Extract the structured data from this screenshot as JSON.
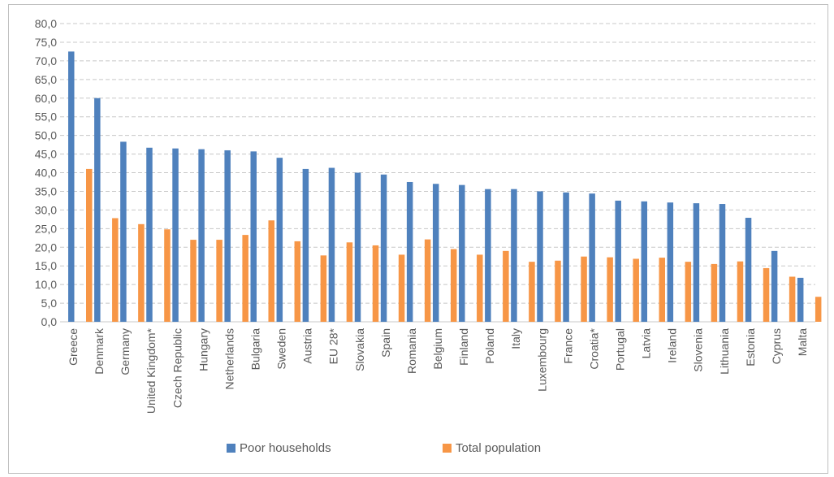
{
  "chart_data": {
    "type": "bar",
    "categories": [
      "Greece",
      "Denmark",
      "Germany",
      "United Kingdom*",
      "Czech Republic",
      "Hungary",
      "Netherlands",
      "Bulgaria",
      "Sweden",
      "Austria",
      "EU 28*",
      "Slovakia",
      "Spain",
      "Romania",
      "Belgium",
      "Finland",
      "Poland",
      "Italy",
      "Luxembourg",
      "France",
      "Croatia*",
      "Portugal",
      "Latvia",
      "Ireland",
      "Slovenia",
      "Lithuania",
      "Estonia",
      "Cyprus",
      "Malta"
    ],
    "series": [
      {
        "name": "Poor households",
        "color": "#4f81bd",
        "values": [
          72.5,
          60.0,
          48.3,
          46.7,
          46.5,
          46.3,
          46.0,
          45.7,
          44.0,
          41.0,
          41.3,
          40.0,
          39.5,
          37.5,
          37.0,
          36.7,
          35.6,
          35.6,
          35.0,
          34.7,
          34.4,
          32.5,
          32.3,
          32.0,
          31.8,
          31.6,
          27.9,
          19.0,
          11.8
        ]
      },
      {
        "name": "Total population",
        "color": "#f79646",
        "values": [
          41.0,
          27.8,
          26.2,
          24.8,
          22.0,
          22.0,
          23.3,
          27.2,
          21.6,
          17.8,
          21.3,
          20.5,
          18.0,
          22.1,
          19.5,
          18.0,
          19.0,
          16.1,
          16.4,
          17.5,
          17.3,
          16.9,
          17.2,
          16.1,
          15.5,
          16.2,
          14.4,
          12.1,
          6.7
        ]
      }
    ],
    "y_ticks": [
      "0,0",
      "5,0",
      "10,0",
      "15,0",
      "20,0",
      "25,0",
      "30,0",
      "35,0",
      "40,0",
      "45,0",
      "50,0",
      "55,0",
      "60,0",
      "65,0",
      "70,0",
      "75,0",
      "80,0"
    ],
    "ylim": [
      0,
      80
    ],
    "y_step": 5,
    "grid": true,
    "legend_position": "bottom"
  }
}
